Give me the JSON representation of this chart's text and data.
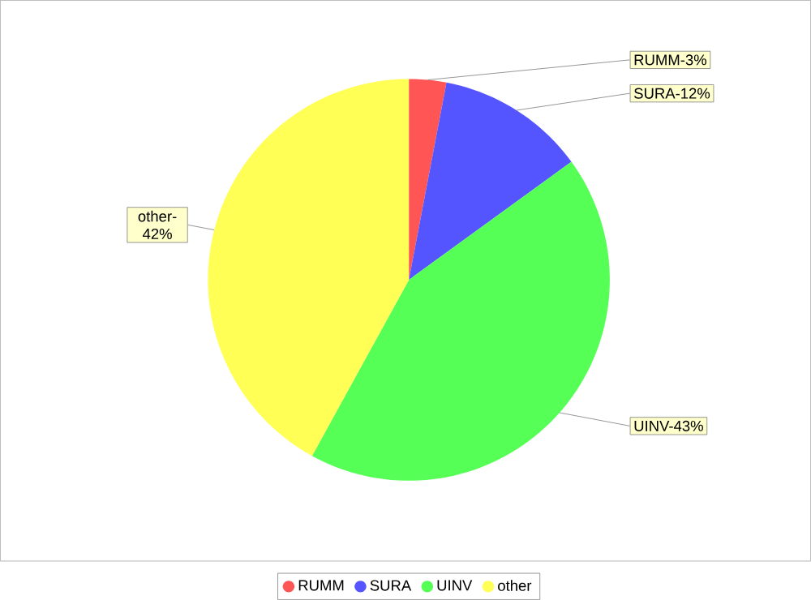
{
  "chart_data": {
    "type": "pie",
    "categories": [
      "RUMM",
      "SURA",
      "UINV",
      "other"
    ],
    "values": [
      3,
      12,
      43,
      42
    ],
    "colors": [
      "#ff5555",
      "#5555ff",
      "#55ff55",
      "#ffff55"
    ],
    "value_labels": [
      "RUMM-3%",
      "SURA-12%",
      "UINV-43%",
      "other-42%"
    ],
    "legend": "bottom"
  }
}
